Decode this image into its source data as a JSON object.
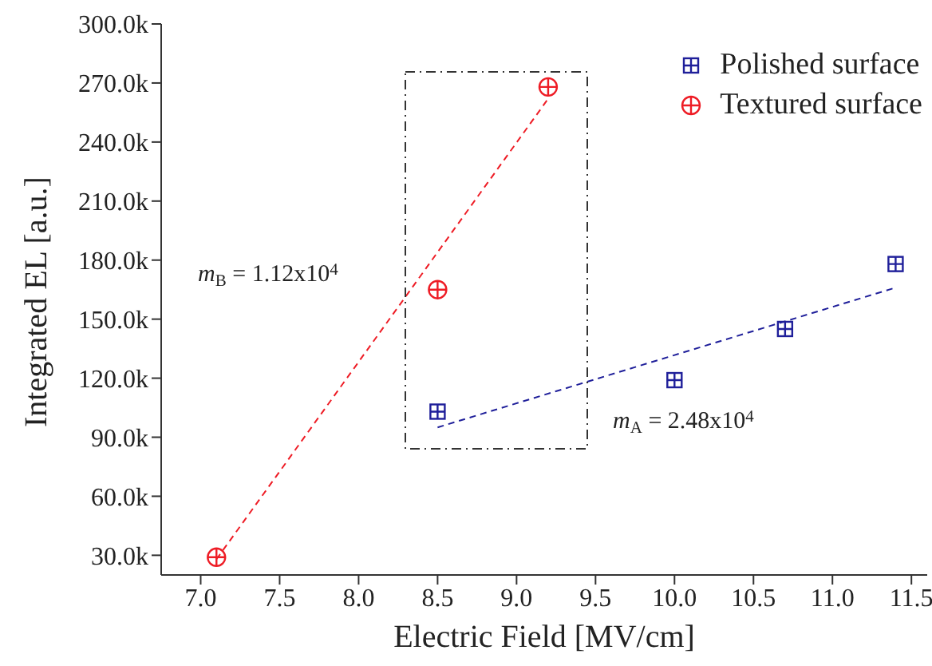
{
  "chart_data": {
    "type": "scatter",
    "xlabel": "Electric Field [MV/cm]",
    "ylabel": "Integrated EL [a.u.]",
    "xlim": [
      6.75,
      11.6
    ],
    "xticks": [
      {
        "value": 7,
        "label": "7.0"
      },
      7.5,
      {
        "value": 8,
        "label": "8.0"
      },
      8.5,
      {
        "value": 9,
        "label": "9.0"
      },
      9.5,
      {
        "value": 10,
        "label": "10.0"
      },
      10.5,
      {
        "value": 11,
        "label": "11.0"
      },
      11.5
    ],
    "ylim": [
      20000,
      300000
    ],
    "yticks": [
      {
        "value": 30000,
        "label": "30.0k"
      },
      {
        "value": 60000,
        "label": "60.0k"
      },
      {
        "value": 90000,
        "label": "90.0k"
      },
      {
        "value": 120000,
        "label": "120.0k"
      },
      {
        "value": 150000,
        "label": "150.0k"
      },
      {
        "value": 180000,
        "label": "180.0k"
      },
      {
        "value": 210000,
        "label": "210.0k"
      },
      {
        "value": 240000,
        "label": "240.0k"
      },
      {
        "value": 270000,
        "label": "270.0k"
      },
      {
        "value": 300000,
        "label": "300.0k"
      }
    ],
    "series": [
      {
        "name": "Polished surface",
        "color": "#1f1f9a",
        "marker": "square",
        "x": [
          8.5,
          10.0,
          10.7,
          11.4
        ],
        "values": [
          103000,
          119000,
          145000,
          178000
        ]
      },
      {
        "name": "Textured surface",
        "color": "#ee1c25",
        "marker": "circle",
        "x": [
          7.1,
          8.5,
          9.2
        ],
        "values": [
          29000,
          165000,
          268000
        ]
      },
      {
        "type": "line",
        "color": "#1f1f9a",
        "line_style": "dashed",
        "x": [
          8.5,
          11.4
        ],
        "values": [
          95000,
          166000
        ]
      },
      {
        "type": "line",
        "color": "#ee1c25",
        "line_style": "dashed",
        "x": [
          7.1,
          9.2
        ],
        "values": [
          28000,
          262000
        ]
      }
    ],
    "annotations": [
      "m$_{B}$ = 1.12x10$^{4}$",
      "m$_{A}$ = 2.48x10$^{4}$"
    ],
    "legend": "top right"
  }
}
